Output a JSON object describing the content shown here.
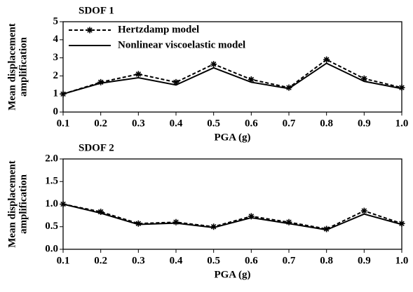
{
  "chart_data": [
    {
      "type": "line",
      "title": "SDOF 1",
      "xlabel": "PGA (g)",
      "ylabel": [
        "Mean displacement",
        "amplification"
      ],
      "x": [
        0.1,
        0.2,
        0.3,
        0.4,
        0.5,
        0.6,
        0.7,
        0.8,
        0.9,
        1.0
      ],
      "series": [
        {
          "name": "Hertzdamp model",
          "color": "#000000",
          "dashed": true,
          "marker": "star",
          "values": [
            1.0,
            1.65,
            2.1,
            1.65,
            2.65,
            1.8,
            1.35,
            2.9,
            1.85,
            1.35
          ]
        },
        {
          "name": "Nonlinear viscoelastic model",
          "color": "#000000",
          "dashed": false,
          "values": [
            1.0,
            1.6,
            1.9,
            1.5,
            2.45,
            1.65,
            1.3,
            2.7,
            1.7,
            1.3
          ]
        }
      ],
      "legend": "upper left",
      "xlim": [
        0.1,
        1.0
      ],
      "xticks": [
        0.1,
        0.2,
        0.3,
        0.4,
        0.5,
        0.6,
        0.7,
        0.8,
        0.9,
        {
          "value": 1,
          "label": "1.0"
        }
      ],
      "ylim": [
        0,
        5
      ],
      "yticks": [
        0,
        1,
        2,
        3,
        4,
        5
      ]
    },
    {
      "type": "line",
      "title": "SDOF 2",
      "xlabel": "PGA (g)",
      "ylabel": [
        "Mean displacement",
        "amplification"
      ],
      "x": [
        0.1,
        0.2,
        0.3,
        0.4,
        0.5,
        0.6,
        0.7,
        0.8,
        0.9,
        1.0
      ],
      "series": [
        {
          "color": "#000000",
          "dashed": true,
          "marker": "star",
          "values": [
            1.0,
            0.83,
            0.57,
            0.6,
            0.5,
            0.73,
            0.6,
            0.45,
            0.85,
            0.57
          ]
        },
        {
          "color": "#000000",
          "dashed": false,
          "values": [
            1.0,
            0.8,
            0.55,
            0.58,
            0.48,
            0.7,
            0.57,
            0.43,
            0.78,
            0.55
          ]
        }
      ],
      "xlim": [
        0.1,
        1.0
      ],
      "xticks": [
        0.1,
        0.2,
        0.3,
        0.4,
        0.5,
        0.6,
        0.7,
        0.8,
        0.9,
        {
          "value": 1,
          "label": "1.0"
        }
      ],
      "ylim": [
        0,
        2
      ],
      "yticks": [
        {
          "value": 0,
          "label": "0.0"
        },
        {
          "value": 0.5,
          "label": "0.5"
        },
        {
          "value": 1,
          "label": "1.0"
        },
        {
          "value": 1.5,
          "label": "1.5"
        },
        {
          "value": 2,
          "label": "2.0"
        }
      ]
    }
  ]
}
